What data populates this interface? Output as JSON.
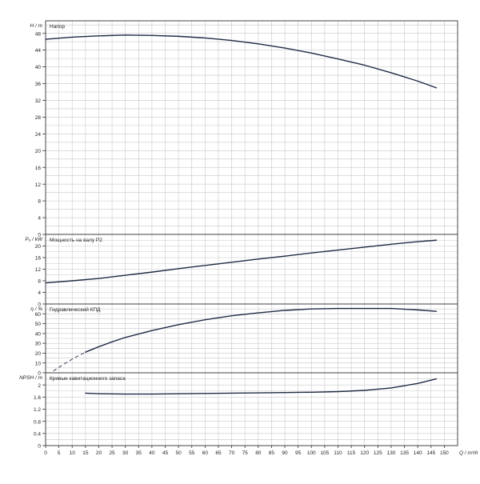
{
  "chart_data": {
    "type": "line",
    "x": {
      "label": "Q / m³/h",
      "min": 0,
      "max": 155,
      "ticks": [
        0,
        5,
        10,
        15,
        20,
        25,
        30,
        35,
        40,
        45,
        50,
        55,
        60,
        65,
        70,
        75,
        80,
        85,
        90,
        95,
        100,
        105,
        110,
        115,
        120,
        125,
        130,
        135,
        140,
        145,
        150
      ]
    },
    "panels": [
      {
        "id": "head",
        "ylabel": "H / m",
        "title": "Напор",
        "ylim": [
          0,
          50
        ],
        "yticks": [
          0,
          4,
          8,
          12,
          16,
          20,
          24,
          28,
          32,
          36,
          40,
          44,
          48
        ],
        "series": [
          {
            "points": [
              [
                0,
                46.6
              ],
              [
                10,
                47.1
              ],
              [
                20,
                47.4
              ],
              [
                30,
                47.6
              ],
              [
                40,
                47.5
              ],
              [
                50,
                47.3
              ],
              [
                60,
                46.9
              ],
              [
                70,
                46.3
              ],
              [
                80,
                45.5
              ],
              [
                90,
                44.5
              ],
              [
                100,
                43.3
              ],
              [
                110,
                41.9
              ],
              [
                120,
                40.4
              ],
              [
                130,
                38.6
              ],
              [
                140,
                36.6
              ],
              [
                147,
                35.0
              ]
            ]
          }
        ]
      },
      {
        "id": "power",
        "ylabel": "P₂ / kW",
        "title": "Мощность на валу P2",
        "ylim": [
          0,
          24
        ],
        "yticks": [
          0,
          4,
          8,
          12,
          16,
          20
        ],
        "series": [
          {
            "points": [
              [
                0,
                7.3
              ],
              [
                10,
                8.0
              ],
              [
                20,
                8.8
              ],
              [
                30,
                9.9
              ],
              [
                40,
                11.0
              ],
              [
                50,
                12.2
              ],
              [
                60,
                13.3
              ],
              [
                70,
                14.4
              ],
              [
                80,
                15.5
              ],
              [
                90,
                16.5
              ],
              [
                100,
                17.6
              ],
              [
                110,
                18.6
              ],
              [
                120,
                19.6
              ],
              [
                130,
                20.6
              ],
              [
                140,
                21.5
              ],
              [
                147,
                22.0
              ]
            ]
          }
        ]
      },
      {
        "id": "efficiency",
        "ylabel": "η / %",
        "title": "Гидравлический КПД",
        "ylim": [
          0,
          70
        ],
        "yticks": [
          0,
          10,
          20,
          30,
          40,
          50,
          60
        ],
        "series": [
          {
            "dashed": true,
            "points": [
              [
                3,
                2.0
              ],
              [
                7,
                9.0
              ],
              [
                11,
                15.5
              ],
              [
                15,
                21.0
              ]
            ]
          },
          {
            "points": [
              [
                15,
                21.0
              ],
              [
                20,
                26.5
              ],
              [
                25,
                31.5
              ],
              [
                30,
                36.0
              ],
              [
                40,
                43.0
              ],
              [
                50,
                49.0
              ],
              [
                60,
                54.0
              ],
              [
                70,
                58.0
              ],
              [
                80,
                61.0
              ],
              [
                90,
                63.5
              ],
              [
                100,
                65.0
              ],
              [
                110,
                65.5
              ],
              [
                120,
                65.5
              ],
              [
                130,
                65.5
              ],
              [
                140,
                64.0
              ],
              [
                147,
                62.5
              ]
            ]
          }
        ]
      },
      {
        "id": "npsh",
        "ylabel": "NPSH / m",
        "title": "Кривые кавитационного запаса",
        "ylim": [
          0,
          2.4
        ],
        "yticks": [
          0,
          0.4,
          0.8,
          1.2,
          1.6,
          2
        ],
        "series": [
          {
            "points": [
              [
                15,
                1.73
              ],
              [
                20,
                1.71
              ],
              [
                30,
                1.7
              ],
              [
                40,
                1.7
              ],
              [
                50,
                1.71
              ],
              [
                60,
                1.72
              ],
              [
                70,
                1.73
              ],
              [
                80,
                1.74
              ],
              [
                90,
                1.75
              ],
              [
                100,
                1.76
              ],
              [
                110,
                1.78
              ],
              [
                120,
                1.82
              ],
              [
                130,
                1.9
              ],
              [
                140,
                2.05
              ],
              [
                147,
                2.2
              ]
            ]
          }
        ]
      }
    ]
  }
}
